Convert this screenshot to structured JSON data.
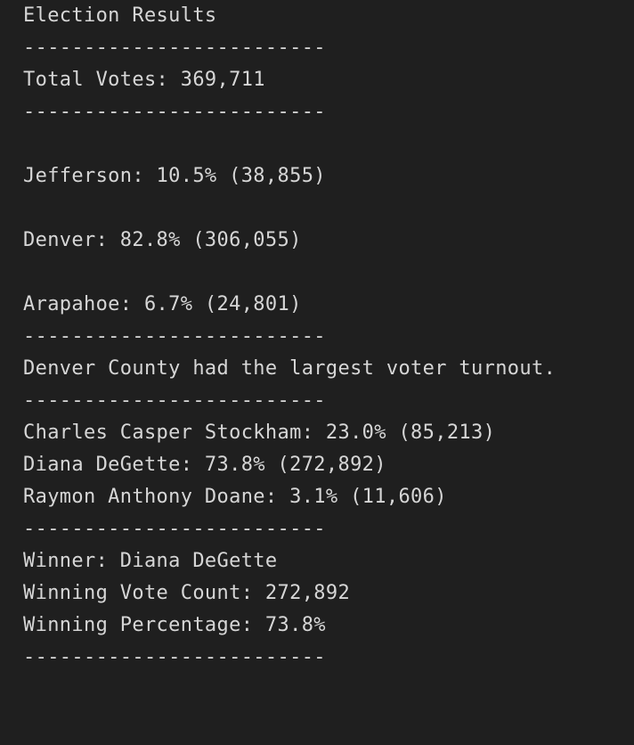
{
  "output": {
    "title": "Election Results",
    "divider": "-------------------------",
    "total_votes": "Total Votes: 369,711",
    "counties": [
      "Jefferson: 10.5% (38,855)",
      "Denver: 82.8% (306,055)",
      "Arapahoe: 6.7% (24,801)"
    ],
    "largest_county": "Denver County had the largest voter turnout.",
    "candidates": [
      "Charles Casper Stockham: 23.0% (85,213)",
      "Diana DeGette: 73.8% (272,892)",
      "Raymon Anthony Doane: 3.1% (11,606)"
    ],
    "winner": "Winner: Diana DeGette",
    "winning_vote_count": "Winning Vote Count: 272,892",
    "winning_percentage": "Winning Percentage: 73.8%"
  }
}
